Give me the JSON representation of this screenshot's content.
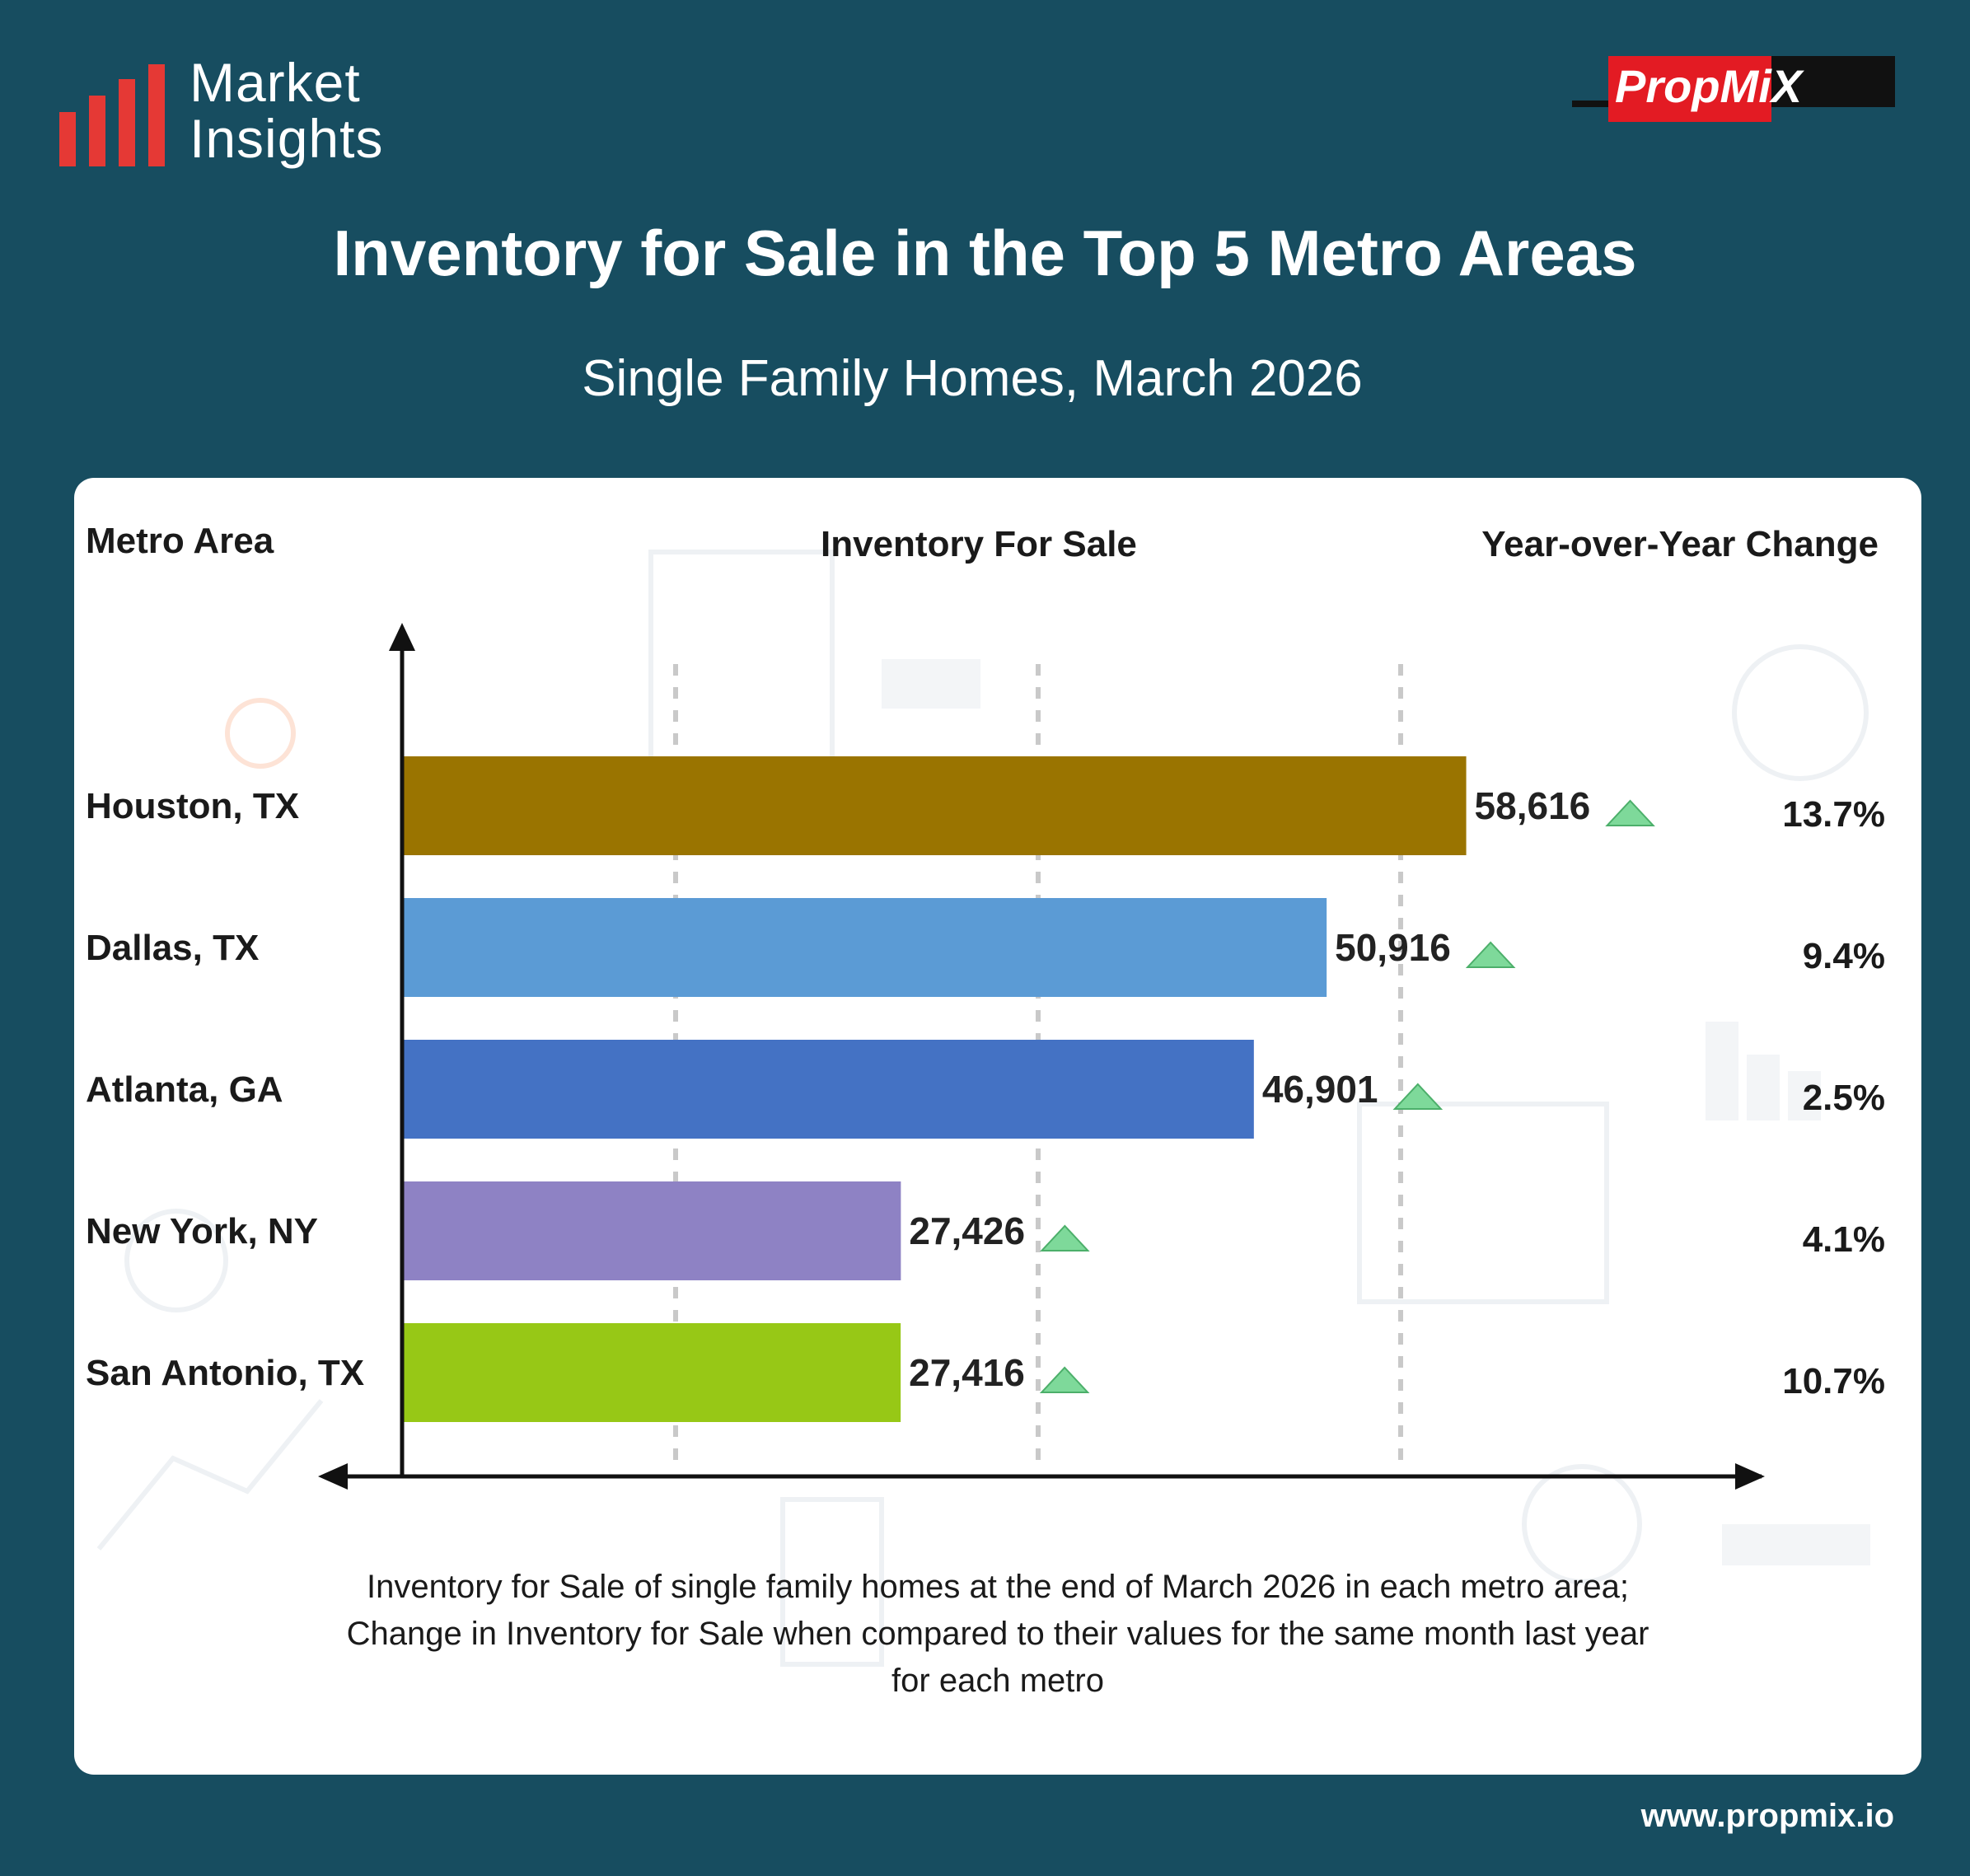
{
  "brand": {
    "logo_text_line1": "Market",
    "logo_text_line2": "Insights",
    "partner_logo": "PropMiX",
    "website": "www.propmix.io"
  },
  "colors": {
    "background": "#174d60",
    "panel": "#ffffff",
    "accent_red": "#e53935",
    "up_arrow": "#7ed99a"
  },
  "title": "Inventory for Sale in the Top 5 Metro Areas",
  "subtitle": "Single Family Homes, March 2026",
  "columns": {
    "metro": "Metro Area",
    "inventory": "Inventory For Sale",
    "yoy": "Year-over-Year Change"
  },
  "footnote": {
    "line1": "Inventory for Sale of single family homes at the end of March 2026 in each metro area;",
    "line2": "Change in Inventory for Sale when compared to their values for the same month last year",
    "line3": "for each metro"
  },
  "chart_data": {
    "type": "bar",
    "orientation": "horizontal",
    "categories": [
      "Houston, TX",
      "Dallas, TX",
      "Atlanta, GA",
      "New York, NY",
      "San Antonio, TX"
    ],
    "values": [
      58616,
      50916,
      46901,
      27426,
      27416
    ],
    "value_labels": [
      "58,616",
      "50,916",
      "46,901",
      "27,426",
      "27,416"
    ],
    "yoy_change": [
      "13.7%",
      "9.4%",
      "2.5%",
      "4.1%",
      "10.7%"
    ],
    "yoy_direction": [
      "up",
      "up",
      "up",
      "up",
      "up"
    ],
    "bar_colors": [
      "#9a7400",
      "#5b9bd5",
      "#4472c4",
      "#8e82c4",
      "#97c816"
    ],
    "xlim": [
      0,
      65000
    ],
    "grid": true,
    "legend": "none"
  }
}
